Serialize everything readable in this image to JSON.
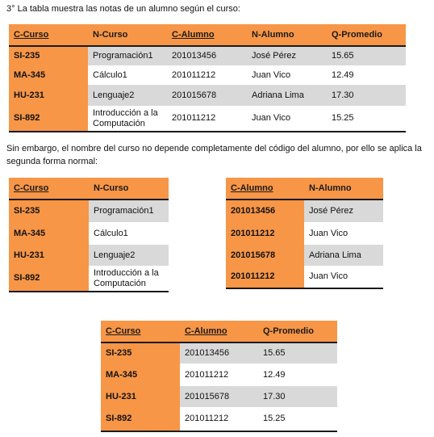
{
  "intro": "3° La tabla muestra las notas de un alumno según el curso:",
  "note": "Sin embargo, el nombre del curso no depende completamente del código del alumno, por ello se aplica la segunda forma normal:",
  "table_main": {
    "headers": [
      "C-Curso",
      "N-Curso",
      "C-Alumno",
      "N-Alumno",
      "Q-Promedio"
    ],
    "rows": [
      [
        "SI-235",
        "Programación1",
        "201013456",
        "José Pérez",
        "15.65"
      ],
      [
        "MA-345",
        "Cálculo1",
        "201011212",
        "Juan Vico",
        "12.49"
      ],
      [
        "HU-231",
        "Lenguaje2",
        "201015678",
        "Adriana Lima",
        "17.30"
      ],
      [
        "SI-892",
        "Introducción a la Computación",
        "201011212",
        "Juan Vico",
        "15.25"
      ]
    ]
  },
  "table_curso": {
    "headers": [
      "C-Curso",
      "N-Curso"
    ],
    "rows": [
      [
        "SI-235",
        "Programación1"
      ],
      [
        "MA-345",
        "Cálculo1"
      ],
      [
        "HU-231",
        "Lenguaje2"
      ],
      [
        "SI-892",
        "Introducción a la Computación"
      ]
    ]
  },
  "table_alumno": {
    "headers": [
      "C-Alumno",
      "N-Alumno"
    ],
    "rows": [
      [
        "201013456",
        "José Pérez"
      ],
      [
        "201011212",
        "Juan Vico"
      ],
      [
        "201015678",
        "Adriana Lima"
      ],
      [
        "201011212",
        "Juan Vico"
      ]
    ]
  },
  "table_nota": {
    "headers": [
      "C-Curso",
      "C-Alumno",
      "Q-Promedio"
    ],
    "rows": [
      [
        "SI-235",
        "201013456",
        "15.65"
      ],
      [
        "MA-345",
        "201011212",
        "12.49"
      ],
      [
        "HU-231",
        "201015678",
        "17.30"
      ],
      [
        "SI-892",
        "201011212",
        "15.25"
      ]
    ]
  },
  "colors": {
    "header_orange": "#f79646",
    "row_gray": "#d9d9d9"
  }
}
